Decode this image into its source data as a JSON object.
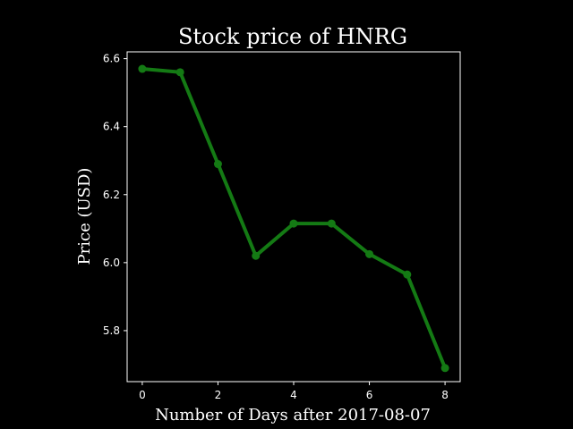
{
  "chart_data": {
    "type": "line",
    "title": "Stock price of HNRG",
    "xlabel": "Number of Days after 2017-08-07",
    "ylabel": "Price (USD)",
    "x": [
      0,
      1,
      2,
      3,
      4,
      5,
      6,
      7,
      8
    ],
    "series": [
      {
        "values": [
          6.57,
          6.56,
          6.29,
          6.02,
          6.115,
          6.115,
          6.025,
          5.965,
          5.69
        ]
      }
    ],
    "xlim": [
      -0.4,
      8.4
    ],
    "ylim": [
      5.65,
      6.62
    ],
    "xticks": [
      0,
      2,
      4,
      6,
      8
    ],
    "xtick_labels": [
      "0",
      "2",
      "4",
      "6",
      "8"
    ],
    "yticks": [
      5.8,
      6.0,
      6.2,
      6.4,
      6.6
    ],
    "ytick_labels": [
      "5.8",
      "6.0",
      "6.2",
      "6.4",
      "6.6"
    ],
    "grid": false,
    "colors": {
      "background": "#000000",
      "axes": "#ffffff",
      "text": "#ffffff",
      "line": "#147a14"
    }
  }
}
